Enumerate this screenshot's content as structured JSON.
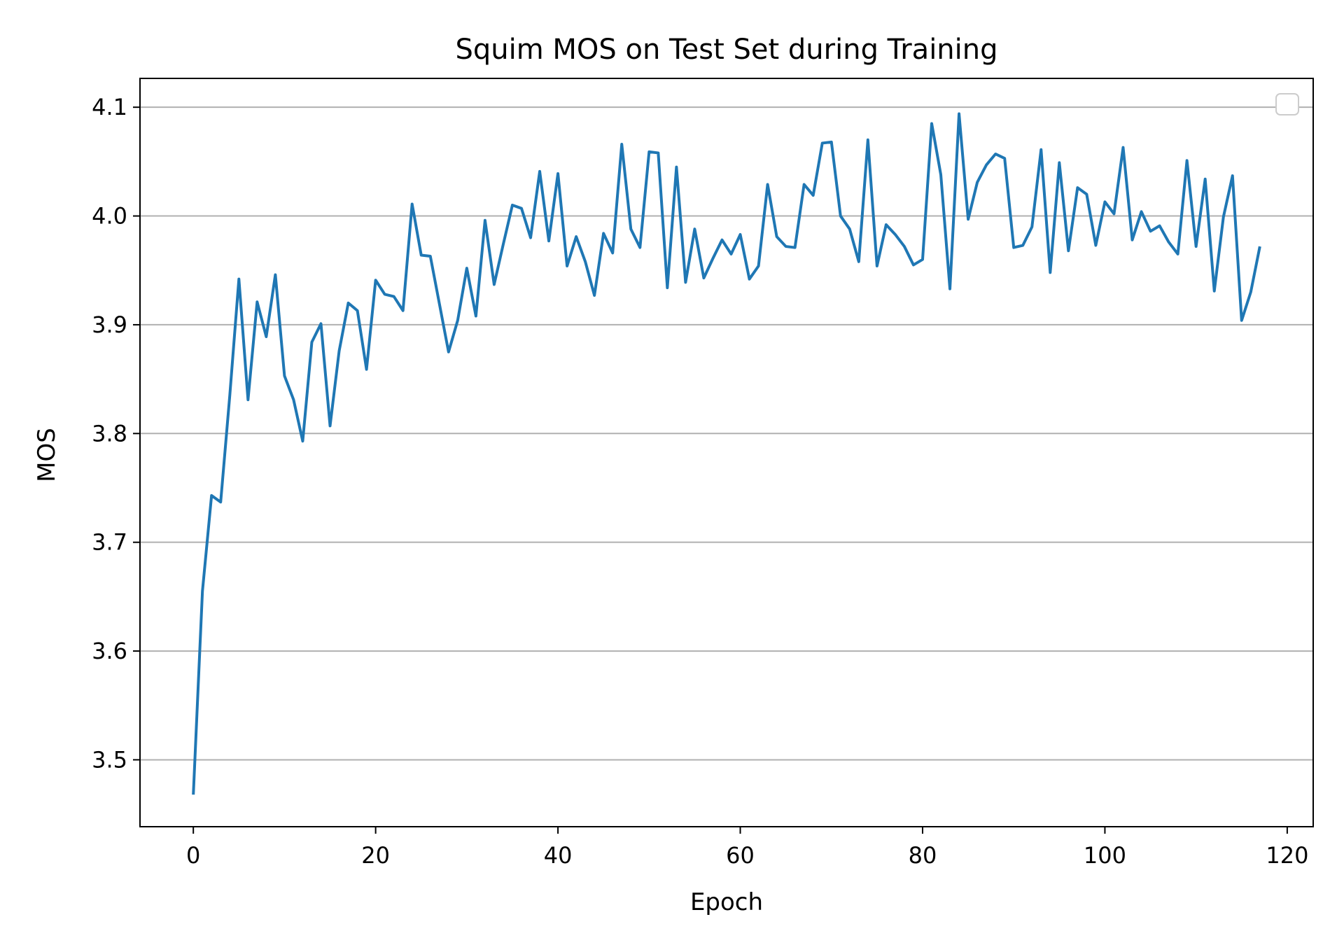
{
  "chart_data": {
    "type": "line",
    "title": "Squim MOS on Test Set during Training",
    "xlabel": "Epoch",
    "ylabel": "MOS",
    "xlim": [
      -5.85,
      122.85
    ],
    "ylim": [
      3.4385,
      4.1265
    ],
    "xticks": [
      0,
      20,
      40,
      60,
      80,
      100,
      120
    ],
    "xtick_labels": [
      "0",
      "20",
      "40",
      "60",
      "80",
      "100",
      "120"
    ],
    "yticks": [
      3.5,
      3.6,
      3.7,
      3.8,
      3.9,
      4.0,
      4.1
    ],
    "ytick_labels": [
      "3.5",
      "3.6",
      "3.7",
      "3.8",
      "3.9",
      "4.0",
      "4.1"
    ],
    "grid": "horizontal",
    "legend": "top-right (empty)",
    "series": [
      {
        "color": "#1f77b4",
        "x": [
          0,
          1,
          2,
          3,
          4,
          5,
          6,
          7,
          8,
          9,
          10,
          11,
          12,
          13,
          14,
          15,
          16,
          17,
          18,
          19,
          20,
          21,
          22,
          23,
          24,
          25,
          26,
          27,
          28,
          29,
          30,
          31,
          32,
          33,
          34,
          35,
          36,
          37,
          38,
          39,
          40,
          41,
          42,
          43,
          44,
          45,
          46,
          47,
          48,
          49,
          50,
          51,
          52,
          53,
          54,
          55,
          56,
          57,
          58,
          59,
          60,
          61,
          62,
          63,
          64,
          65,
          66,
          67,
          68,
          69,
          70,
          71,
          72,
          73,
          74,
          75,
          76,
          77,
          78,
          79,
          80,
          81,
          82,
          83,
          84,
          85,
          86,
          87,
          88,
          89,
          90,
          91,
          92,
          93,
          94,
          95,
          96,
          97,
          98,
          99,
          100,
          101,
          102,
          103,
          104,
          105,
          106,
          107,
          108,
          109,
          110,
          111,
          112,
          113,
          114,
          115,
          116,
          117
        ],
        "y": [
          3.468,
          3.655,
          3.743,
          3.737,
          3.835,
          3.942,
          3.831,
          3.921,
          3.889,
          3.946,
          3.853,
          3.831,
          3.793,
          3.884,
          3.901,
          3.807,
          3.876,
          3.92,
          3.913,
          3.859,
          3.941,
          3.928,
          3.926,
          3.913,
          4.011,
          3.964,
          3.963,
          3.919,
          3.875,
          3.904,
          3.952,
          3.908,
          3.996,
          3.937,
          3.974,
          4.01,
          4.007,
          3.98,
          4.041,
          3.977,
          4.039,
          3.954,
          3.981,
          3.958,
          3.927,
          3.984,
          3.966,
          4.066,
          3.988,
          3.971,
          4.059,
          4.058,
          3.934,
          4.045,
          3.939,
          3.988,
          3.943,
          3.961,
          3.978,
          3.965,
          3.983,
          3.942,
          3.954,
          4.029,
          3.981,
          3.972,
          3.971,
          4.029,
          4.019,
          4.067,
          4.068,
          4.0,
          3.988,
          3.958,
          4.07,
          3.954,
          3.992,
          3.983,
          3.972,
          3.955,
          3.96,
          4.085,
          4.038,
          3.933,
          4.094,
          3.997,
          4.031,
          4.047,
          4.057,
          4.053,
          3.971,
          3.973,
          3.99,
          4.061,
          3.948,
          4.049,
          3.968,
          4.026,
          4.02,
          3.973,
          4.013,
          4.002,
          4.063,
          3.978,
          4.004,
          3.986,
          3.991,
          3.976,
          3.965,
          4.051,
          3.972,
          4.034,
          3.931,
          3.999,
          4.037,
          3.904,
          3.93,
          3.972
        ]
      }
    ]
  }
}
